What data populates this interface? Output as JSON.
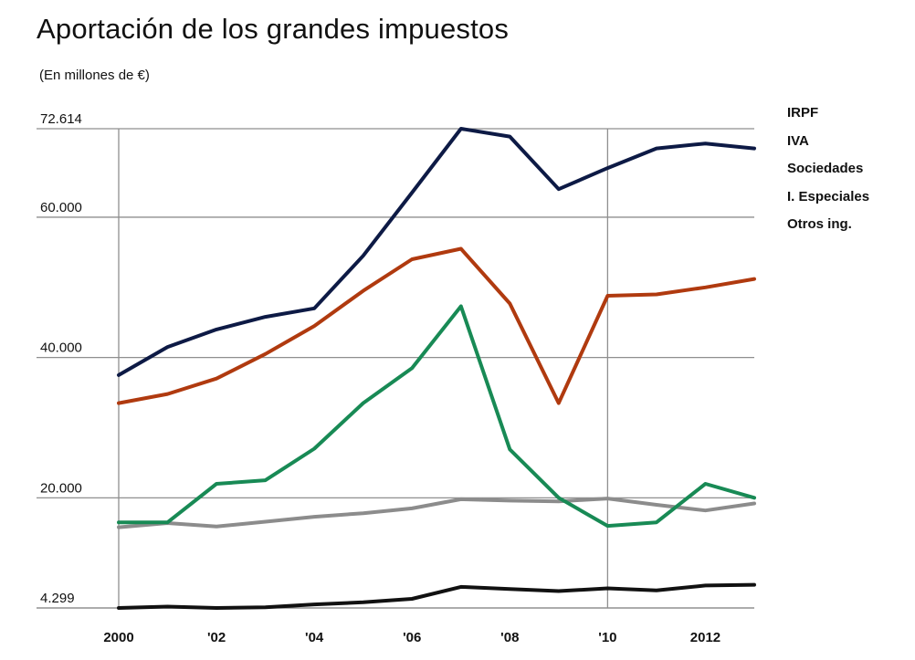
{
  "chart_data": {
    "type": "line",
    "title": "Aportación de los grandes impuestos",
    "subtitle": "(En millones de €)",
    "x": [
      2000,
      2001,
      2002,
      2003,
      2004,
      2005,
      2006,
      2007,
      2008,
      2009,
      2010,
      2011,
      2012,
      2013
    ],
    "xtick_labels": [
      {
        "x": 2000,
        "label": "2000"
      },
      {
        "x": 2002,
        "label": "'02"
      },
      {
        "x": 2004,
        "label": "'04"
      },
      {
        "x": 2006,
        "label": "'06"
      },
      {
        "x": 2008,
        "label": "'08"
      },
      {
        "x": 2010,
        "label": "'10"
      },
      {
        "x": 2012,
        "label": "2012"
      }
    ],
    "ytick_labels": [
      {
        "y": 72614,
        "label": "72.614"
      },
      {
        "y": 60000,
        "label": "60.000"
      },
      {
        "y": 40000,
        "label": "40.000"
      },
      {
        "y": 20000,
        "label": "20.000"
      },
      {
        "y": 4299,
        "label": "4.299"
      }
    ],
    "ylim": [
      4299,
      72614
    ],
    "xlim": [
      2000,
      2013
    ],
    "grid": "horizontal at labeled ticks, vertical at 2000 and 2010",
    "legend_position": "right",
    "series": [
      {
        "name": "IRPF",
        "color": "#0d1a45",
        "values": [
          37500,
          41500,
          44000,
          45800,
          47000,
          54500,
          63500,
          72614,
          71500,
          64000,
          67000,
          69800,
          70500,
          69800
        ]
      },
      {
        "name": "IVA",
        "color": "#b03a0f",
        "values": [
          33500,
          34800,
          37000,
          40500,
          44500,
          49500,
          54000,
          55500,
          47700,
          33500,
          48800,
          49000,
          50000,
          51200
        ]
      },
      {
        "name": "Sociedades",
        "color": "#188a55",
        "values": [
          16500,
          16500,
          22000,
          22500,
          27000,
          33500,
          38500,
          47300,
          26900,
          20000,
          16000,
          16500,
          22000,
          20000
        ]
      },
      {
        "name": "I. Especiales",
        "color": "#8c8c8c",
        "values": [
          15800,
          16400,
          15900,
          16600,
          17300,
          17800,
          18500,
          19800,
          19600,
          19500,
          19900,
          19000,
          18200,
          19200
        ]
      },
      {
        "name": "Otros ing.",
        "color": "#111111",
        "values": [
          4299,
          4500,
          4300,
          4400,
          4800,
          5100,
          5600,
          7300,
          7000,
          6700,
          7100,
          6800,
          7500,
          7600
        ]
      }
    ]
  }
}
